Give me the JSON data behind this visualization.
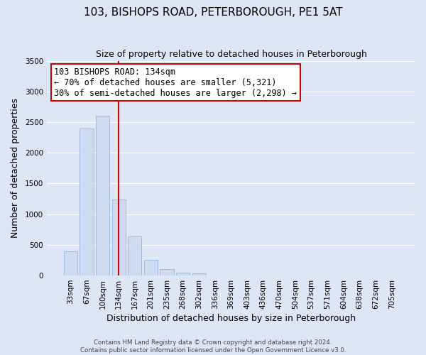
{
  "title": "103, BISHOPS ROAD, PETERBOROUGH, PE1 5AT",
  "subtitle": "Size of property relative to detached houses in Peterborough",
  "xlabel": "Distribution of detached houses by size in Peterborough",
  "ylabel": "Number of detached properties",
  "bar_labels": [
    "33sqm",
    "67sqm",
    "100sqm",
    "134sqm",
    "167sqm",
    "201sqm",
    "235sqm",
    "268sqm",
    "302sqm",
    "336sqm",
    "369sqm",
    "403sqm",
    "436sqm",
    "470sqm",
    "504sqm",
    "537sqm",
    "571sqm",
    "604sqm",
    "638sqm",
    "672sqm",
    "705sqm"
  ],
  "bar_values": [
    390,
    2390,
    2600,
    1240,
    640,
    255,
    100,
    50,
    30,
    0,
    0,
    0,
    0,
    0,
    0,
    0,
    0,
    0,
    0,
    0,
    0
  ],
  "bar_color": "#cddaf0",
  "bar_edge_color": "#9ab5d8",
  "vline_x_index": 3,
  "vline_color": "#cc0000",
  "ylim": [
    0,
    3500
  ],
  "yticks": [
    0,
    500,
    1000,
    1500,
    2000,
    2500,
    3000,
    3500
  ],
  "annotation_title": "103 BISHOPS ROAD: 134sqm",
  "annotation_line1": "← 70% of detached houses are smaller (5,321)",
  "annotation_line2": "30% of semi-detached houses are larger (2,298) →",
  "annotation_box_facecolor": "#ffffff",
  "annotation_box_edgecolor": "#cc0000",
  "footer_line1": "Contains HM Land Registry data © Crown copyright and database right 2024.",
  "footer_line2": "Contains public sector information licensed under the Open Government Licence v3.0.",
  "background_color": "#dde6f5",
  "plot_bg_color": "#dde6f5",
  "grid_color": "#ffffff",
  "title_fontsize": 11,
  "subtitle_fontsize": 9,
  "ylabel_fontsize": 9,
  "xlabel_fontsize": 9,
  "tick_fontsize": 7.5,
  "annot_fontsize": 8.5
}
